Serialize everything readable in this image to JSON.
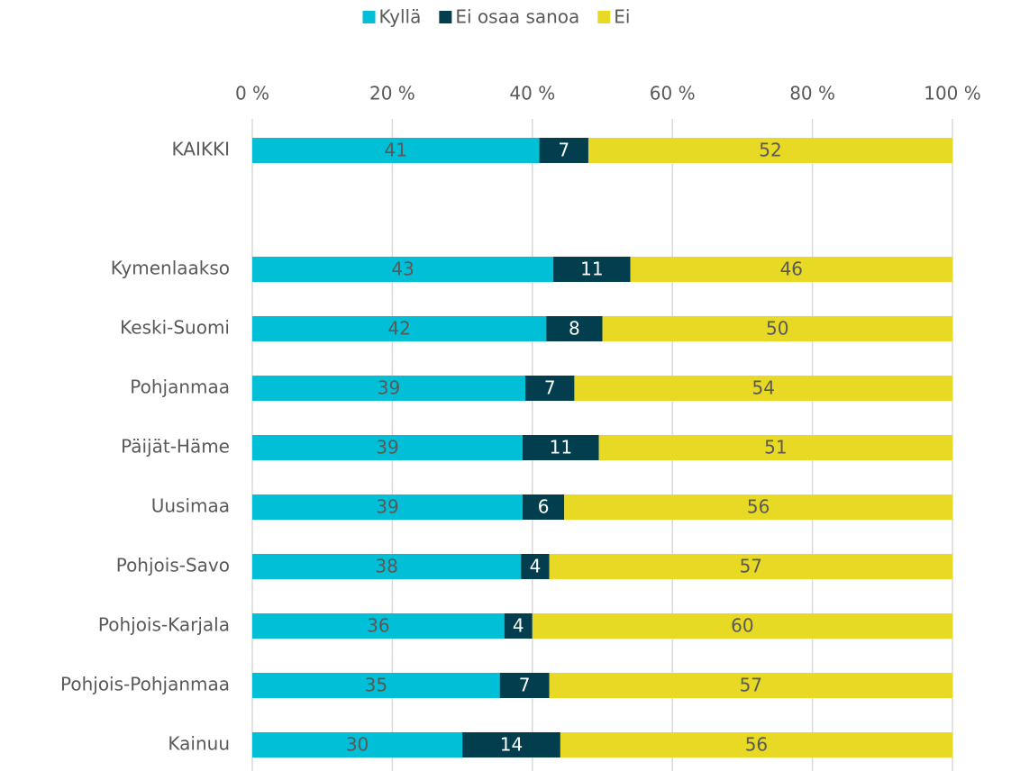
{
  "chart_data": {
    "type": "bar",
    "orientation": "horizontal",
    "stacked": "percent",
    "categories": [
      "KAIKKI",
      null,
      "Kymenlaakso",
      "Keski-Suomi",
      "Pohjanmaa",
      "Päijät-Häme",
      "Uusimaa",
      "Pohjois-Savo",
      "Pohjois-Karjala",
      "Pohjois-Pohjanmaa",
      "Kainuu"
    ],
    "series": [
      {
        "name": "Kyllä",
        "color": "#00bfd6",
        "values": [
          41,
          null,
          43,
          42,
          39,
          39,
          39,
          38,
          36,
          35,
          30
        ]
      },
      {
        "name": "Ei osaa sanoa",
        "color": "#023e4d",
        "values": [
          7,
          null,
          11,
          8,
          7,
          11,
          6,
          4,
          4,
          7,
          14
        ]
      },
      {
        "name": "Ei",
        "color": "#e8d924",
        "values": [
          52,
          null,
          46,
          50,
          54,
          51,
          56,
          57,
          60,
          57,
          56
        ]
      }
    ],
    "xlim": [
      0,
      100
    ],
    "xticks": [
      {
        "value": 0,
        "label": "0 %"
      },
      {
        "value": 20,
        "label": "20 %"
      },
      {
        "value": 40,
        "label": "40 %"
      },
      {
        "value": 60,
        "label": "60 %"
      },
      {
        "value": 80,
        "label": "80 %"
      },
      {
        "value": 100,
        "label": "100 %"
      }
    ],
    "grid": true,
    "legend": "top"
  }
}
